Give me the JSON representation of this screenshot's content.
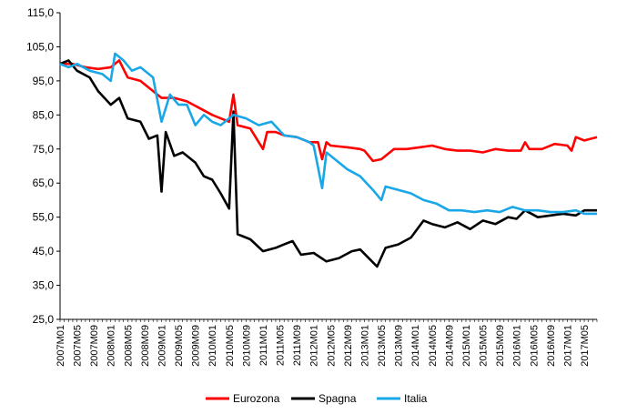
{
  "chart_data": {
    "type": "line",
    "title": "",
    "xlabel": "",
    "ylabel": "",
    "ylim": [
      25,
      115
    ],
    "y_ticks": [
      "25,0",
      "35,0",
      "45,0",
      "55,0",
      "65,0",
      "75,0",
      "85,0",
      "95,0",
      "105,0",
      "115,0"
    ],
    "x_ticks": [
      "2007M01",
      "2007M05",
      "2007M09",
      "2008M01",
      "2008M05",
      "2008M09",
      "2009M01",
      "2009M05",
      "2009M09",
      "2010M01",
      "2010M05",
      "2010M09",
      "2011M01",
      "2011M05",
      "2011M09",
      "2012M01",
      "2012M05",
      "2012M09",
      "2013M01",
      "2013M05",
      "2013M09",
      "2014M01",
      "2014M05",
      "2014M09",
      "2015M01",
      "2015M05",
      "2015M09",
      "2016M01",
      "2016M05",
      "2016M09",
      "2017M01",
      "2017M05"
    ],
    "x_range": [
      "2007M01",
      "2017M08"
    ],
    "grid": false,
    "legend_position": "bottom",
    "series": [
      {
        "name": "Eurozona",
        "color": "#ff0000",
        "points": [
          [
            "2007M01",
            100
          ],
          [
            "2007M04",
            100
          ],
          [
            "2007M07",
            99
          ],
          [
            "2007M10",
            98.5
          ],
          [
            "2008M01",
            99
          ],
          [
            "2008M03",
            101
          ],
          [
            "2008M05",
            96
          ],
          [
            "2008M08",
            95
          ],
          [
            "2008M11",
            92
          ],
          [
            "2009M01",
            90
          ],
          [
            "2009M04",
            90
          ],
          [
            "2009M07",
            89
          ],
          [
            "2009M10",
            87
          ],
          [
            "2010M01",
            85
          ],
          [
            "2010M03",
            84
          ],
          [
            "2010M05",
            83
          ],
          [
            "2010M06",
            91
          ],
          [
            "2010M07",
            82
          ],
          [
            "2010M10",
            81
          ],
          [
            "2011M01",
            75
          ],
          [
            "2011M02",
            80
          ],
          [
            "2011M04",
            80
          ],
          [
            "2011M06",
            79
          ],
          [
            "2011M09",
            78.5
          ],
          [
            "2011M12",
            77
          ],
          [
            "2012M02",
            77
          ],
          [
            "2012M03",
            72
          ],
          [
            "2012M04",
            77
          ],
          [
            "2012M05",
            76
          ],
          [
            "2012M09",
            75.5
          ],
          [
            "2012M12",
            75
          ],
          [
            "2013M01",
            74.5
          ],
          [
            "2013M03",
            71.5
          ],
          [
            "2013M05",
            72
          ],
          [
            "2013M08",
            75
          ],
          [
            "2013M11",
            75
          ],
          [
            "2014M02",
            75.5
          ],
          [
            "2014M05",
            76
          ],
          [
            "2014M08",
            75
          ],
          [
            "2014M11",
            74.5
          ],
          [
            "2015M02",
            74.5
          ],
          [
            "2015M05",
            74
          ],
          [
            "2015M08",
            75
          ],
          [
            "2015M11",
            74.5
          ],
          [
            "2016M02",
            74.5
          ],
          [
            "2016M03",
            77
          ],
          [
            "2016M04",
            75
          ],
          [
            "2016M07",
            75
          ],
          [
            "2016M10",
            76.5
          ],
          [
            "2017M01",
            76
          ],
          [
            "2017M02",
            74.5
          ],
          [
            "2017M03",
            78.5
          ],
          [
            "2017M05",
            77.5
          ],
          [
            "2017M08",
            78.5
          ]
        ]
      },
      {
        "name": "Spagna",
        "color": "#000000",
        "points": [
          [
            "2007M01",
            100
          ],
          [
            "2007M03",
            101
          ],
          [
            "2007M05",
            98
          ],
          [
            "2007M08",
            96
          ],
          [
            "2007M10",
            92
          ],
          [
            "2008M01",
            88
          ],
          [
            "2008M03",
            90
          ],
          [
            "2008M05",
            84
          ],
          [
            "2008M08",
            83
          ],
          [
            "2008M10",
            78
          ],
          [
            "2008M12",
            79
          ],
          [
            "2009M01",
            62.5
          ],
          [
            "2009M02",
            80
          ],
          [
            "2009M04",
            73
          ],
          [
            "2009M06",
            74
          ],
          [
            "2009M09",
            71
          ],
          [
            "2009M11",
            67
          ],
          [
            "2010M01",
            66
          ],
          [
            "2010M03",
            62
          ],
          [
            "2010M05",
            57.5
          ],
          [
            "2010M06",
            86
          ],
          [
            "2010M07",
            50
          ],
          [
            "2010M10",
            48.5
          ],
          [
            "2011M01",
            45
          ],
          [
            "2011M04",
            46
          ],
          [
            "2011M06",
            47
          ],
          [
            "2011M08",
            48
          ],
          [
            "2011M10",
            44
          ],
          [
            "2012M01",
            44.5
          ],
          [
            "2012M04",
            42
          ],
          [
            "2012M07",
            43
          ],
          [
            "2012M10",
            45
          ],
          [
            "2012M12",
            45.5
          ],
          [
            "2013M02",
            43
          ],
          [
            "2013M04",
            40.5
          ],
          [
            "2013M06",
            46
          ],
          [
            "2013M09",
            47
          ],
          [
            "2013M12",
            49
          ],
          [
            "2014M03",
            54
          ],
          [
            "2014M05",
            53
          ],
          [
            "2014M08",
            52
          ],
          [
            "2014M11",
            53.5
          ],
          [
            "2015M02",
            51.5
          ],
          [
            "2015M05",
            54
          ],
          [
            "2015M08",
            53
          ],
          [
            "2015M11",
            55
          ],
          [
            "2016M01",
            54.5
          ],
          [
            "2016M03",
            57
          ],
          [
            "2016M06",
            55
          ],
          [
            "2016M09",
            55.5
          ],
          [
            "2016M12",
            56
          ],
          [
            "2017M03",
            55.5
          ],
          [
            "2017M05",
            57
          ],
          [
            "2017M08",
            57
          ]
        ]
      },
      {
        "name": "Italia",
        "color": "#1aa7e8",
        "points": [
          [
            "2007M01",
            100
          ],
          [
            "2007M03",
            99
          ],
          [
            "2007M05",
            100
          ],
          [
            "2007M08",
            98
          ],
          [
            "2007M11",
            97
          ],
          [
            "2008M01",
            95
          ],
          [
            "2008M02",
            103
          ],
          [
            "2008M04",
            101
          ],
          [
            "2008M06",
            98
          ],
          [
            "2008M08",
            99
          ],
          [
            "2008M11",
            96
          ],
          [
            "2009M01",
            83
          ],
          [
            "2009M03",
            91
          ],
          [
            "2009M05",
            88
          ],
          [
            "2009M07",
            88
          ],
          [
            "2009M09",
            82
          ],
          [
            "2009M11",
            85
          ],
          [
            "2010M01",
            83
          ],
          [
            "2010M03",
            82
          ],
          [
            "2010M06",
            85
          ],
          [
            "2010M09",
            84
          ],
          [
            "2010M12",
            82
          ],
          [
            "2011M03",
            83
          ],
          [
            "2011M06",
            79
          ],
          [
            "2011M09",
            78.5
          ],
          [
            "2011M12",
            77
          ],
          [
            "2012M01",
            76
          ],
          [
            "2012M03",
            63.5
          ],
          [
            "2012M04",
            74
          ],
          [
            "2012M06",
            72
          ],
          [
            "2012M09",
            69
          ],
          [
            "2012M12",
            67
          ],
          [
            "2013M03",
            63
          ],
          [
            "2013M05",
            60
          ],
          [
            "2013M06",
            64
          ],
          [
            "2013M09",
            63
          ],
          [
            "2013M12",
            62
          ],
          [
            "2014M03",
            60
          ],
          [
            "2014M06",
            59
          ],
          [
            "2014M09",
            57
          ],
          [
            "2014M12",
            57
          ],
          [
            "2015M03",
            56.5
          ],
          [
            "2015M06",
            57
          ],
          [
            "2015M09",
            56.5
          ],
          [
            "2015M12",
            58
          ],
          [
            "2016M03",
            57
          ],
          [
            "2016M06",
            57
          ],
          [
            "2016M09",
            56.5
          ],
          [
            "2016M12",
            56.5
          ],
          [
            "2017M03",
            57
          ],
          [
            "2017M05",
            56
          ],
          [
            "2017M08",
            56
          ]
        ]
      }
    ]
  }
}
